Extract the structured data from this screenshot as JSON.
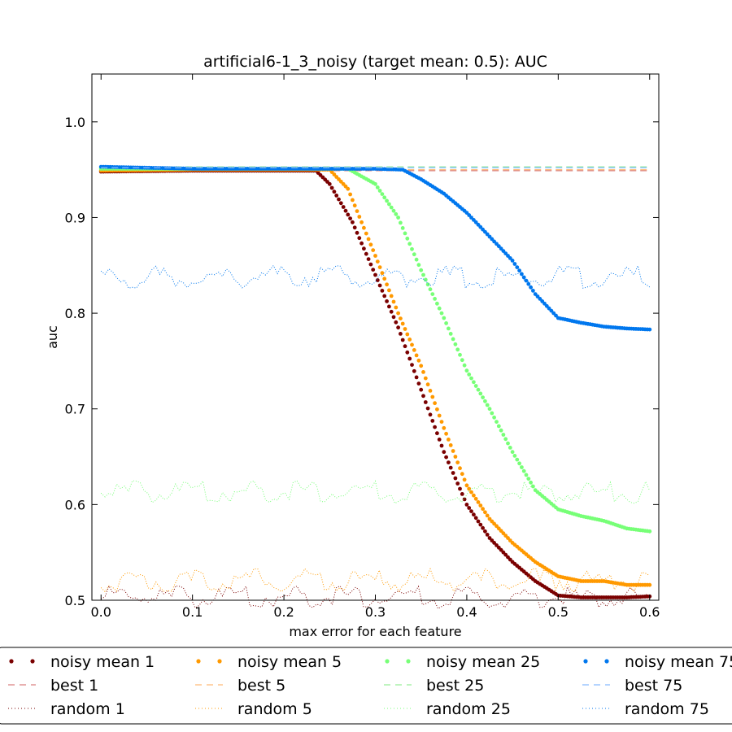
{
  "chart_data": {
    "type": "scatter",
    "title": "artificial6-1_3_noisy (target mean: 0.5): AUC",
    "xlabel": "max error for each feature",
    "ylabel": "auc",
    "xlim": [
      -0.01,
      0.61
    ],
    "ylim": [
      0.5,
      1.05
    ],
    "xticks": [
      0.0,
      0.1,
      0.2,
      0.3,
      0.4,
      0.5,
      0.6
    ],
    "xtick_labels": [
      "0.0",
      "0.1",
      "0.2",
      "0.3",
      "0.4",
      "0.5",
      "0.6"
    ],
    "yticks": [
      0.5,
      0.6,
      0.7,
      0.8,
      0.9,
      1.0
    ],
    "ytick_labels": [
      "0.5",
      "0.6",
      "0.7",
      "0.8",
      "0.9",
      "1.0"
    ],
    "grid": false,
    "legend_position": "below plot, 4 columns",
    "series": [
      {
        "name": "noisy mean 1",
        "style": "dots",
        "color": "#7a0000",
        "x": [
          0.0,
          0.1,
          0.2,
          0.235,
          0.25,
          0.275,
          0.3,
          0.325,
          0.35,
          0.375,
          0.4,
          0.425,
          0.45,
          0.475,
          0.5,
          0.525,
          0.55,
          0.575,
          0.6
        ],
        "y": [
          0.948,
          0.949,
          0.949,
          0.949,
          0.935,
          0.895,
          0.84,
          0.785,
          0.72,
          0.655,
          0.6,
          0.565,
          0.54,
          0.52,
          0.505,
          0.503,
          0.503,
          0.503,
          0.504
        ]
      },
      {
        "name": "best 1",
        "style": "dashed",
        "color": "#d98080",
        "x": [
          0.0,
          0.6
        ],
        "y": [
          0.949,
          0.949
        ]
      },
      {
        "name": "random 1",
        "style": "dotted",
        "color": "#7a0000",
        "x": [
          0.0,
          0.6
        ],
        "y": [
          0.503,
          0.503
        ]
      },
      {
        "name": "noisy mean 5",
        "style": "dots",
        "color": "#ff9900",
        "x": [
          0.0,
          0.1,
          0.2,
          0.25,
          0.27,
          0.3,
          0.325,
          0.35,
          0.375,
          0.4,
          0.425,
          0.45,
          0.475,
          0.5,
          0.525,
          0.55,
          0.575,
          0.6
        ],
        "y": [
          0.949,
          0.95,
          0.95,
          0.95,
          0.93,
          0.86,
          0.8,
          0.745,
          0.68,
          0.62,
          0.585,
          0.56,
          0.54,
          0.525,
          0.52,
          0.52,
          0.516,
          0.516
        ]
      },
      {
        "name": "best 5",
        "style": "dashed",
        "color": "#ffbb77",
        "x": [
          0.0,
          0.6
        ],
        "y": [
          0.95,
          0.95
        ]
      },
      {
        "name": "random 5",
        "style": "dotted",
        "color": "#ff9900",
        "x": [
          0.0,
          0.6
        ],
        "y": [
          0.521,
          0.521
        ]
      },
      {
        "name": "noisy mean 25",
        "style": "dots",
        "color": "#77ff77",
        "x": [
          0.0,
          0.1,
          0.2,
          0.27,
          0.3,
          0.325,
          0.35,
          0.375,
          0.4,
          0.425,
          0.45,
          0.475,
          0.5,
          0.525,
          0.55,
          0.575,
          0.6
        ],
        "y": [
          0.951,
          0.951,
          0.951,
          0.951,
          0.935,
          0.9,
          0.845,
          0.795,
          0.74,
          0.7,
          0.655,
          0.615,
          0.595,
          0.588,
          0.583,
          0.575,
          0.572
        ]
      },
      {
        "name": "best 25",
        "style": "dashed",
        "color": "#99ee99",
        "x": [
          0.0,
          0.6
        ],
        "y": [
          0.953,
          0.953
        ]
      },
      {
        "name": "random 25",
        "style": "dotted",
        "color": "#77ff77",
        "x": [
          0.0,
          0.6
        ],
        "y": [
          0.613,
          0.613
        ]
      },
      {
        "name": "noisy mean 75",
        "style": "dots",
        "color": "#0077ee",
        "x": [
          0.0,
          0.1,
          0.2,
          0.3,
          0.33,
          0.35,
          0.375,
          0.4,
          0.425,
          0.45,
          0.475,
          0.5,
          0.525,
          0.55,
          0.575,
          0.6
        ],
        "y": [
          0.953,
          0.951,
          0.951,
          0.951,
          0.95,
          0.94,
          0.925,
          0.905,
          0.88,
          0.855,
          0.82,
          0.795,
          0.79,
          0.786,
          0.784,
          0.783
        ]
      },
      {
        "name": "best 75",
        "style": "dashed",
        "color": "#88bbff",
        "x": [
          0.0,
          0.6
        ],
        "y": [
          0.952,
          0.952
        ]
      },
      {
        "name": "random 75",
        "style": "dotted",
        "color": "#0077ee",
        "x": [
          0.0,
          0.6
        ],
        "y": [
          0.838,
          0.838
        ]
      }
    ]
  }
}
